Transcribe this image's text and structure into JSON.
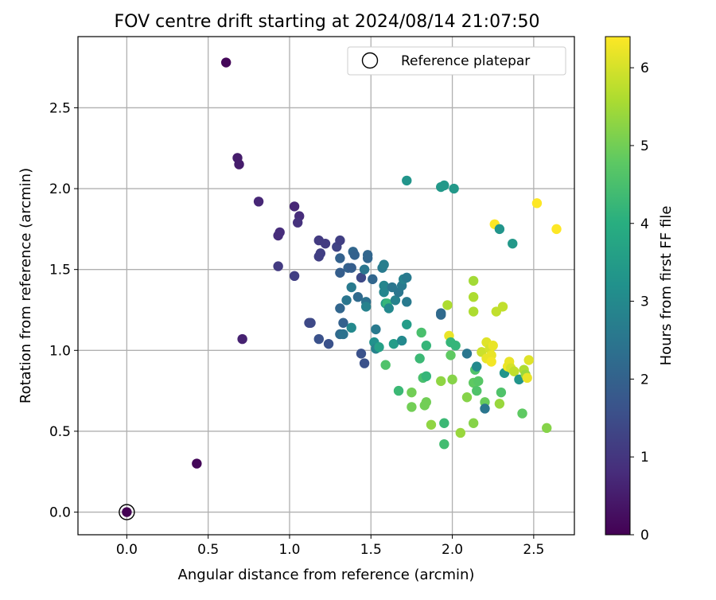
{
  "chart_data": {
    "type": "scatter",
    "title": "FOV centre drift starting at 2024/08/14 21:07:50",
    "xlabel": "Angular distance from reference (arcmin)",
    "ylabel": "Rotation from reference (arcmin)",
    "xlim": [
      -0.3,
      2.75
    ],
    "ylim": [
      -0.14,
      2.94
    ],
    "xticks": [
      "0.0",
      "0.5",
      "1.0",
      "1.5",
      "2.0",
      "2.5"
    ],
    "yticks": [
      "0.0",
      "0.5",
      "1.0",
      "1.5",
      "2.0",
      "2.5"
    ],
    "grid": true,
    "legend": {
      "placement": "top-right",
      "entries": [
        "Reference platepar"
      ]
    },
    "reference_point": [
      0.0,
      0.0
    ],
    "colorbar": {
      "label": "Hours from first FF file",
      "colormap": "viridis",
      "range": [
        0,
        6.4
      ],
      "ticks": [
        "0",
        "1",
        "2",
        "3",
        "4",
        "5",
        "6"
      ]
    },
    "points": [
      [
        0.0,
        0.0,
        0.0
      ],
      [
        0.61,
        2.78,
        0.1
      ],
      [
        0.43,
        0.3,
        0.1
      ],
      [
        0.68,
        2.19,
        0.5
      ],
      [
        0.69,
        2.15,
        0.5
      ],
      [
        0.71,
        1.07,
        0.6
      ],
      [
        0.81,
        1.92,
        0.7
      ],
      [
        0.93,
        1.71,
        0.8
      ],
      [
        0.94,
        1.73,
        0.8
      ],
      [
        0.93,
        1.52,
        1.1
      ],
      [
        1.03,
        1.89,
        0.7
      ],
      [
        1.06,
        1.83,
        0.8
      ],
      [
        1.05,
        1.79,
        0.9
      ],
      [
        1.03,
        1.46,
        1.2
      ],
      [
        1.12,
        1.17,
        1.4
      ],
      [
        1.13,
        1.17,
        1.4
      ],
      [
        1.18,
        1.68,
        1.1
      ],
      [
        1.19,
        1.6,
        1.2
      ],
      [
        1.18,
        1.58,
        1.2
      ],
      [
        1.22,
        1.66,
        1.1
      ],
      [
        1.18,
        1.07,
        1.6
      ],
      [
        1.24,
        1.04,
        1.6
      ],
      [
        1.29,
        1.64,
        1.3
      ],
      [
        1.31,
        1.68,
        1.2
      ],
      [
        1.31,
        1.57,
        2.0
      ],
      [
        1.31,
        1.48,
        1.9
      ],
      [
        1.31,
        1.26,
        2.1
      ],
      [
        1.33,
        1.17,
        2.0
      ],
      [
        1.31,
        1.1,
        2.2
      ],
      [
        1.33,
        1.1,
        2.4
      ],
      [
        1.35,
        1.31,
        2.5
      ],
      [
        1.36,
        1.51,
        2.0
      ],
      [
        1.38,
        1.51,
        1.9
      ],
      [
        1.39,
        1.61,
        2.1
      ],
      [
        1.4,
        1.59,
        2.0
      ],
      [
        1.38,
        1.39,
        2.6
      ],
      [
        1.38,
        1.14,
        3.0
      ],
      [
        1.42,
        1.33,
        2.2
      ],
      [
        1.44,
        1.45,
        1.4
      ],
      [
        1.44,
        0.98,
        1.6
      ],
      [
        1.46,
        0.92,
        1.6
      ],
      [
        1.48,
        1.57,
        2.1
      ],
      [
        1.48,
        1.59,
        2.1
      ],
      [
        1.46,
        1.5,
        2.5
      ],
      [
        1.47,
        1.3,
        2.4
      ],
      [
        1.47,
        1.27,
        2.8
      ],
      [
        1.51,
        1.44,
        2.1
      ],
      [
        1.53,
        1.13,
        2.6
      ],
      [
        1.52,
        1.05,
        3.2
      ],
      [
        1.53,
        1.01,
        2.8
      ],
      [
        1.55,
        1.02,
        3.6
      ],
      [
        1.57,
        1.51,
        2.6
      ],
      [
        1.58,
        1.53,
        2.7
      ],
      [
        1.58,
        1.4,
        2.9
      ],
      [
        1.58,
        1.36,
        2.9
      ],
      [
        1.59,
        1.29,
        3.5
      ],
      [
        1.6,
        1.29,
        4.2
      ],
      [
        1.61,
        1.26,
        3.0
      ],
      [
        1.59,
        0.91,
        4.6
      ],
      [
        1.63,
        1.39,
        2.5
      ],
      [
        1.64,
        1.04,
        3.5
      ],
      [
        1.65,
        1.31,
        2.8
      ],
      [
        1.67,
        1.36,
        2.5
      ],
      [
        1.69,
        1.4,
        2.6
      ],
      [
        1.69,
        1.06,
        3.0
      ],
      [
        1.7,
        1.44,
        2.8
      ],
      [
        1.72,
        1.45,
        2.6
      ],
      [
        1.72,
        1.3,
        2.6
      ],
      [
        1.72,
        1.16,
        3.5
      ],
      [
        1.72,
        2.05,
        3.3
      ],
      [
        1.67,
        0.75,
        4.3
      ],
      [
        1.75,
        0.74,
        5.0
      ],
      [
        1.75,
        0.65,
        5.0
      ],
      [
        1.8,
        0.95,
        4.3
      ],
      [
        1.81,
        1.11,
        4.5
      ],
      [
        1.82,
        0.83,
        4.5
      ],
      [
        1.83,
        0.66,
        5.0
      ],
      [
        1.84,
        0.68,
        5.0
      ],
      [
        1.84,
        1.03,
        4.2
      ],
      [
        1.84,
        0.84,
        4.2
      ],
      [
        1.87,
        0.54,
        5.3
      ],
      [
        1.93,
        2.01,
        3.4
      ],
      [
        1.95,
        2.02,
        3.4
      ],
      [
        2.01,
        2.0,
        3.4
      ],
      [
        1.93,
        1.23,
        2.2
      ],
      [
        1.93,
        1.22,
        2.2
      ],
      [
        1.93,
        0.81,
        5.3
      ],
      [
        1.95,
        0.55,
        4.3
      ],
      [
        1.95,
        0.42,
        4.4
      ],
      [
        1.97,
        1.28,
        5.6
      ],
      [
        1.98,
        1.09,
        6.2
      ],
      [
        1.99,
        1.05,
        4.2
      ],
      [
        1.99,
        0.97,
        4.8
      ],
      [
        2.0,
        0.82,
        5.2
      ],
      [
        2.02,
        1.03,
        4.2
      ],
      [
        2.05,
        0.49,
        5.4
      ],
      [
        2.09,
        0.71,
        5.2
      ],
      [
        2.09,
        0.98,
        2.5
      ],
      [
        2.13,
        1.43,
        5.5
      ],
      [
        2.13,
        1.33,
        5.6
      ],
      [
        2.13,
        1.24,
        5.6
      ],
      [
        2.13,
        0.8,
        4.8
      ],
      [
        2.13,
        0.55,
        5.2
      ],
      [
        2.14,
        0.88,
        4.6
      ],
      [
        2.15,
        0.9,
        3.0
      ],
      [
        2.15,
        0.75,
        4.6
      ],
      [
        2.16,
        0.81,
        4.7
      ],
      [
        2.18,
        0.99,
        5.9
      ],
      [
        2.2,
        0.68,
        4.9
      ],
      [
        2.2,
        0.64,
        2.5
      ],
      [
        2.21,
        1.05,
        6.1
      ],
      [
        2.21,
        0.95,
        6.2
      ],
      [
        2.23,
        1.01,
        6.0
      ],
      [
        2.24,
        0.97,
        6.2
      ],
      [
        2.24,
        0.93,
        6.3
      ],
      [
        2.25,
        1.03,
        6.2
      ],
      [
        2.26,
        1.78,
        6.4
      ],
      [
        2.27,
        1.24,
        5.8
      ],
      [
        2.29,
        0.67,
        5.4
      ],
      [
        2.29,
        1.75,
        3.3
      ],
      [
        2.3,
        0.74,
        4.6
      ],
      [
        2.31,
        1.27,
        5.8
      ],
      [
        2.32,
        0.86,
        3.3
      ],
      [
        2.34,
        0.9,
        6.3
      ],
      [
        2.35,
        0.91,
        6.2
      ],
      [
        2.35,
        0.93,
        6.2
      ],
      [
        2.36,
        0.89,
        6.0
      ],
      [
        2.37,
        1.66,
        3.4
      ],
      [
        2.38,
        0.87,
        5.8
      ],
      [
        2.41,
        0.82,
        3.3
      ],
      [
        2.43,
        0.61,
        4.8
      ],
      [
        2.44,
        0.88,
        5.6
      ],
      [
        2.45,
        0.85,
        5.4
      ],
      [
        2.46,
        0.83,
        6.2
      ],
      [
        2.47,
        0.94,
        6.1
      ],
      [
        2.52,
        1.91,
        6.4
      ],
      [
        2.58,
        0.52,
        5.2
      ],
      [
        2.64,
        1.75,
        6.4
      ]
    ]
  }
}
